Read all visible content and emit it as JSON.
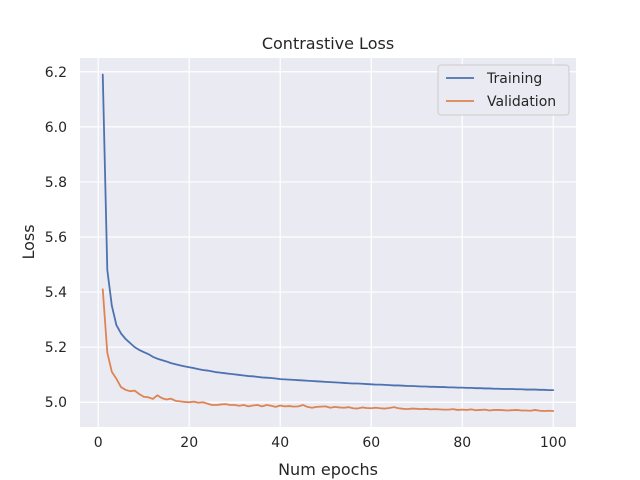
{
  "chart_data": {
    "type": "line",
    "title": "Contrastive Loss",
    "xlabel": "Num epochs",
    "ylabel": "Loss",
    "xlim": [
      -4,
      105
    ],
    "ylim": [
      4.91,
      6.25
    ],
    "xticks": [
      0,
      20,
      40,
      60,
      80,
      100
    ],
    "yticks": [
      5.0,
      5.2,
      5.4,
      5.6,
      5.8,
      6.0,
      6.2
    ],
    "xtick_labels": [
      "0",
      "20",
      "40",
      "60",
      "80",
      "100"
    ],
    "ytick_labels": [
      "5.0",
      "5.2",
      "5.4",
      "5.6",
      "5.8",
      "6.0",
      "6.2"
    ],
    "grid": true,
    "legend_position": "top-right",
    "x": [
      1,
      2,
      3,
      4,
      5,
      6,
      7,
      8,
      9,
      10,
      11,
      12,
      13,
      14,
      15,
      16,
      17,
      18,
      19,
      20,
      21,
      22,
      23,
      24,
      25,
      26,
      27,
      28,
      29,
      30,
      31,
      32,
      33,
      34,
      35,
      36,
      37,
      38,
      39,
      40,
      41,
      42,
      43,
      44,
      45,
      46,
      47,
      48,
      49,
      50,
      51,
      52,
      53,
      54,
      55,
      56,
      57,
      58,
      59,
      60,
      61,
      62,
      63,
      64,
      65,
      66,
      67,
      68,
      69,
      70,
      71,
      72,
      73,
      74,
      75,
      76,
      77,
      78,
      79,
      80,
      81,
      82,
      83,
      84,
      85,
      86,
      87,
      88,
      89,
      90,
      91,
      92,
      93,
      94,
      95,
      96,
      97,
      98,
      99,
      100
    ],
    "series": [
      {
        "name": "Training",
        "color": "#4c72b0",
        "values": [
          6.19,
          5.48,
          5.35,
          5.28,
          5.25,
          5.23,
          5.215,
          5.2,
          5.19,
          5.182,
          5.175,
          5.165,
          5.158,
          5.153,
          5.148,
          5.142,
          5.138,
          5.134,
          5.13,
          5.127,
          5.124,
          5.12,
          5.117,
          5.115,
          5.112,
          5.109,
          5.107,
          5.105,
          5.103,
          5.101,
          5.099,
          5.097,
          5.095,
          5.094,
          5.092,
          5.09,
          5.089,
          5.088,
          5.086,
          5.084,
          5.083,
          5.082,
          5.081,
          5.08,
          5.079,
          5.078,
          5.077,
          5.076,
          5.075,
          5.074,
          5.073,
          5.072,
          5.071,
          5.07,
          5.069,
          5.068,
          5.068,
          5.067,
          5.066,
          5.065,
          5.064,
          5.064,
          5.063,
          5.062,
          5.061,
          5.061,
          5.06,
          5.059,
          5.059,
          5.058,
          5.057,
          5.057,
          5.056,
          5.056,
          5.055,
          5.055,
          5.054,
          5.054,
          5.053,
          5.053,
          5.052,
          5.052,
          5.051,
          5.051,
          5.05,
          5.05,
          5.049,
          5.049,
          5.048,
          5.048,
          5.048,
          5.047,
          5.047,
          5.046,
          5.046,
          5.046,
          5.045,
          5.045,
          5.044,
          5.044
        ]
      },
      {
        "name": "Validation",
        "color": "#dd8452",
        "values": [
          5.41,
          5.18,
          5.11,
          5.085,
          5.055,
          5.045,
          5.04,
          5.042,
          5.03,
          5.02,
          5.018,
          5.012,
          5.025,
          5.015,
          5.01,
          5.013,
          5.005,
          5.003,
          5.001,
          5.0,
          5.002,
          4.998,
          5.0,
          4.995,
          4.99,
          4.99,
          4.992,
          4.993,
          4.99,
          4.99,
          4.987,
          4.99,
          4.985,
          4.988,
          4.99,
          4.985,
          4.99,
          4.987,
          4.983,
          4.988,
          4.985,
          4.986,
          4.984,
          4.985,
          4.99,
          4.983,
          4.98,
          4.983,
          4.984,
          4.985,
          4.98,
          4.983,
          4.981,
          4.98,
          4.982,
          4.978,
          4.977,
          4.981,
          4.979,
          4.978,
          4.98,
          4.978,
          4.977,
          4.979,
          4.982,
          4.978,
          4.976,
          4.975,
          4.977,
          4.976,
          4.975,
          4.976,
          4.974,
          4.975,
          4.974,
          4.973,
          4.973,
          4.975,
          4.972,
          4.973,
          4.972,
          4.974,
          4.971,
          4.972,
          4.973,
          4.97,
          4.972,
          4.972,
          4.971,
          4.97,
          4.971,
          4.972,
          4.97,
          4.97,
          4.969,
          4.972,
          4.969,
          4.968,
          4.969,
          4.968
        ]
      }
    ]
  }
}
